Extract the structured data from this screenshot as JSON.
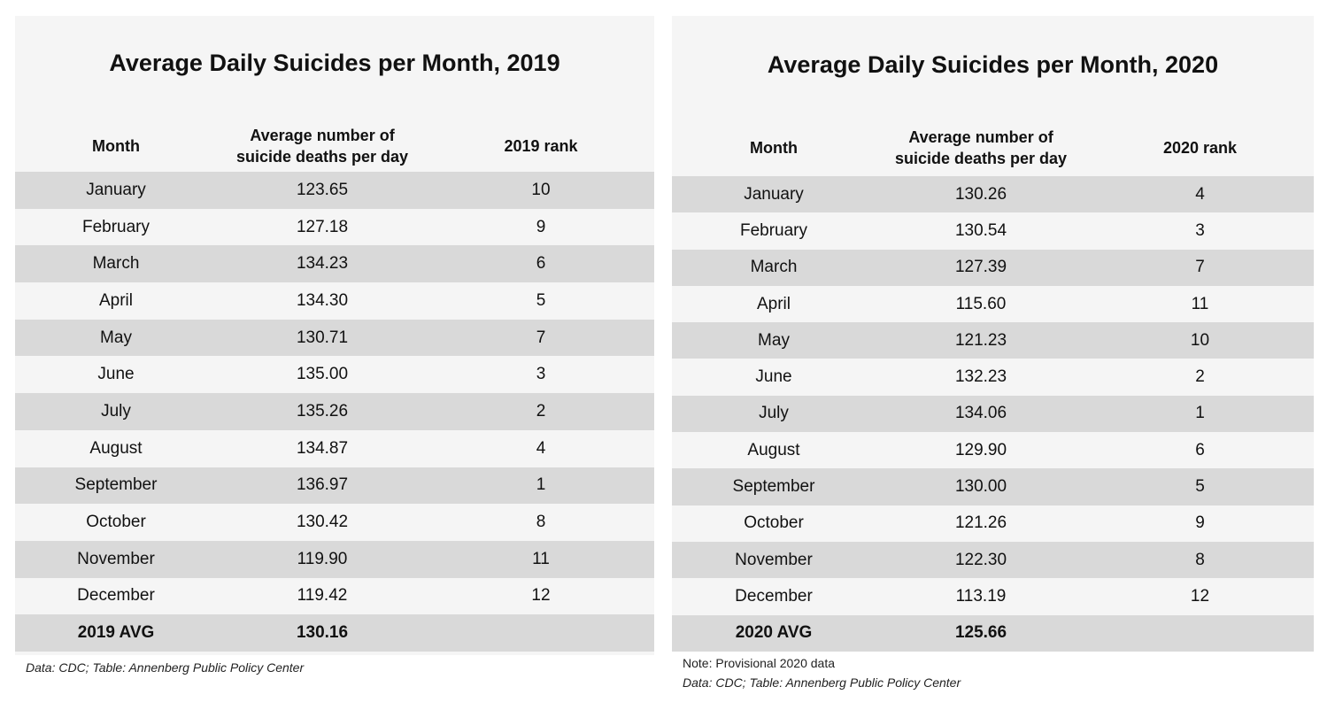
{
  "chart_data": [
    {
      "type": "table",
      "title": "Average Daily Suicides per Month, 2019",
      "columns": [
        "Month",
        "Average number of suicide deaths per day",
        "2019 rank"
      ],
      "rows": [
        [
          "January",
          "123.65",
          "10"
        ],
        [
          "February",
          "127.18",
          "9"
        ],
        [
          "March",
          "134.23",
          "6"
        ],
        [
          "April",
          "134.30",
          "5"
        ],
        [
          "May",
          "130.71",
          "7"
        ],
        [
          "June",
          "135.00",
          "3"
        ],
        [
          "July",
          "135.26",
          "2"
        ],
        [
          "August",
          "134.87",
          "4"
        ],
        [
          "September",
          "136.97",
          "1"
        ],
        [
          "October",
          "130.42",
          "8"
        ],
        [
          "November",
          "119.90",
          "11"
        ],
        [
          "December",
          "119.42",
          "12"
        ]
      ],
      "summary": [
        "2019 AVG",
        "130.16",
        ""
      ],
      "notes": [],
      "source": "Data: CDC; Table: Annenberg Public Policy Center"
    },
    {
      "type": "table",
      "title": "Average Daily Suicides per Month, 2020",
      "columns": [
        "Month",
        "Average number of suicide deaths per day",
        "2020 rank"
      ],
      "rows": [
        [
          "January",
          "130.26",
          "4"
        ],
        [
          "February",
          "130.54",
          "3"
        ],
        [
          "March",
          "127.39",
          "7"
        ],
        [
          "April",
          "115.60",
          "11"
        ],
        [
          "May",
          "121.23",
          "10"
        ],
        [
          "June",
          "132.23",
          "2"
        ],
        [
          "July",
          "134.06",
          "1"
        ],
        [
          "August",
          "129.90",
          "6"
        ],
        [
          "September",
          "130.00",
          "5"
        ],
        [
          "October",
          "121.26",
          "9"
        ],
        [
          "November",
          "122.30",
          "8"
        ],
        [
          "December",
          "113.19",
          "12"
        ]
      ],
      "summary": [
        "2020 AVG",
        "125.66",
        ""
      ],
      "notes": [
        "Note: Provisional 2020 data"
      ],
      "source": "Data: CDC; Table: Annenberg Public Policy Center"
    }
  ],
  "colors": {
    "panel_bg": "#f5f5f5",
    "stripe_bg": "#d9d9d9",
    "text": "#111111"
  }
}
